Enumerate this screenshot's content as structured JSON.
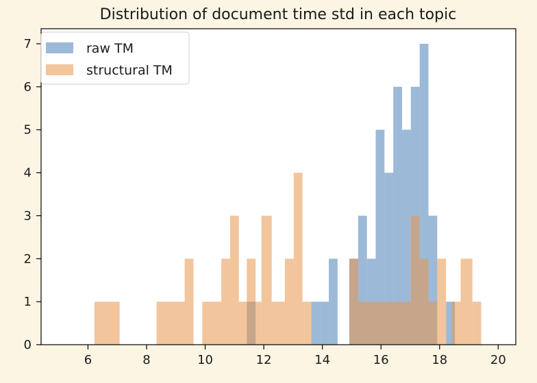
{
  "chart_data": {
    "type": "bar",
    "title": "Distribution of document time std in each topic",
    "xlabel": "",
    "ylabel": "",
    "xlim": [
      4.4,
      20.6
    ],
    "ylim": [
      0,
      7.35
    ],
    "xticks": [
      6,
      8,
      10,
      12,
      14,
      16,
      18,
      20
    ],
    "yticks": [
      0,
      1,
      2,
      3,
      4,
      5,
      6,
      7
    ],
    "grid": false,
    "legend_position": "top-left",
    "series": [
      {
        "name": "raw TM",
        "color": "#4c7fb8",
        "opacity": 0.55,
        "bins": [
          {
            "x0": 11.42,
            "x1": 11.72,
            "count": 1
          },
          {
            "x0": 13.62,
            "x1": 13.92,
            "count": 1
          },
          {
            "x0": 13.92,
            "x1": 14.22,
            "count": 1
          },
          {
            "x0": 14.22,
            "x1": 14.52,
            "count": 2
          },
          {
            "x0": 14.92,
            "x1": 15.22,
            "count": 2
          },
          {
            "x0": 15.22,
            "x1": 15.52,
            "count": 3
          },
          {
            "x0": 15.52,
            "x1": 15.82,
            "count": 2
          },
          {
            "x0": 15.82,
            "x1": 16.12,
            "count": 5
          },
          {
            "x0": 16.12,
            "x1": 16.42,
            "count": 4
          },
          {
            "x0": 16.42,
            "x1": 16.72,
            "count": 6
          },
          {
            "x0": 16.72,
            "x1": 17.02,
            "count": 5
          },
          {
            "x0": 17.02,
            "x1": 17.32,
            "count": 6
          },
          {
            "x0": 17.32,
            "x1": 17.62,
            "count": 7
          },
          {
            "x0": 17.62,
            "x1": 17.92,
            "count": 3
          },
          {
            "x0": 18.22,
            "x1": 18.52,
            "count": 1
          }
        ]
      },
      {
        "name": "structural TM",
        "color": "#e8954a",
        "opacity": 0.55,
        "bins": [
          {
            "x0": 6.22,
            "x1": 7.08,
            "count": 1
          },
          {
            "x0": 8.34,
            "x1": 9.3,
            "count": 1
          },
          {
            "x0": 9.3,
            "x1": 9.6,
            "count": 2
          },
          {
            "x0": 9.9,
            "x1": 10.55,
            "count": 1
          },
          {
            "x0": 10.55,
            "x1": 10.85,
            "count": 2
          },
          {
            "x0": 10.85,
            "x1": 11.15,
            "count": 3
          },
          {
            "x0": 11.15,
            "x1": 11.42,
            "count": 1
          },
          {
            "x0": 11.42,
            "x1": 11.72,
            "count": 2
          },
          {
            "x0": 11.72,
            "x1": 11.92,
            "count": 1
          },
          {
            "x0": 11.92,
            "x1": 12.27,
            "count": 3
          },
          {
            "x0": 12.27,
            "x1": 12.72,
            "count": 1
          },
          {
            "x0": 12.72,
            "x1": 13.02,
            "count": 2
          },
          {
            "x0": 13.02,
            "x1": 13.32,
            "count": 4
          },
          {
            "x0": 13.32,
            "x1": 13.62,
            "count": 1
          },
          {
            "x0": 14.92,
            "x1": 15.22,
            "count": 2
          },
          {
            "x0": 15.22,
            "x1": 15.82,
            "count": 1
          },
          {
            "x0": 15.82,
            "x1": 16.42,
            "count": 1
          },
          {
            "x0": 16.42,
            "x1": 17.02,
            "count": 1
          },
          {
            "x0": 17.02,
            "x1": 17.32,
            "count": 3
          },
          {
            "x0": 17.32,
            "x1": 17.62,
            "count": 2
          },
          {
            "x0": 17.62,
            "x1": 17.92,
            "count": 1
          },
          {
            "x0": 17.92,
            "x1": 18.22,
            "count": 2
          },
          {
            "x0": 18.42,
            "x1": 18.72,
            "count": 1
          },
          {
            "x0": 18.72,
            "x1": 19.12,
            "count": 2
          },
          {
            "x0": 19.12,
            "x1": 19.42,
            "count": 1
          }
        ]
      }
    ]
  }
}
